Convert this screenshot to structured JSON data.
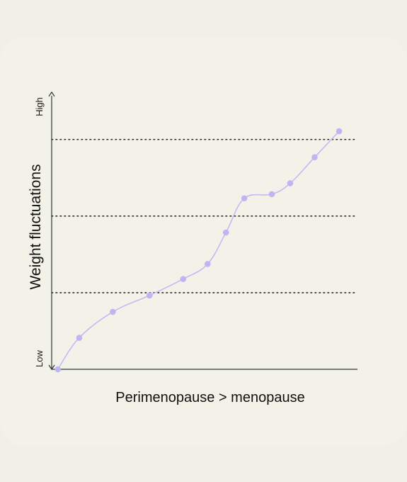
{
  "chart_data": {
    "type": "line",
    "title": "",
    "xlabel": "Perimenopause > menopause",
    "ylabel": "Weight fluctuations",
    "y_tick_labels": {
      "low": "Low",
      "high": "High"
    },
    "ylim": [
      0,
      100
    ],
    "xlim": [
      0,
      100
    ],
    "grid": "dotted horizontal lines at 28, 56, 84",
    "gridlines": [
      28,
      56,
      84
    ],
    "legend": "none",
    "series": [
      {
        "x": [
          2,
          9,
          20,
          32,
          43,
          51,
          57,
          63,
          72,
          78,
          86,
          94
        ],
        "y": [
          0,
          11.5,
          21,
          27,
          33,
          38.5,
          50,
          62.5,
          64,
          68,
          77.5,
          87
        ],
        "color": "#c3b9f5"
      }
    ],
    "colors": {
      "background": "#f3f2e8",
      "axis": "#2f3a2a",
      "grid": "#2b2b2b",
      "line": "#c3b9f5",
      "marker": "#c0b5f3"
    }
  }
}
